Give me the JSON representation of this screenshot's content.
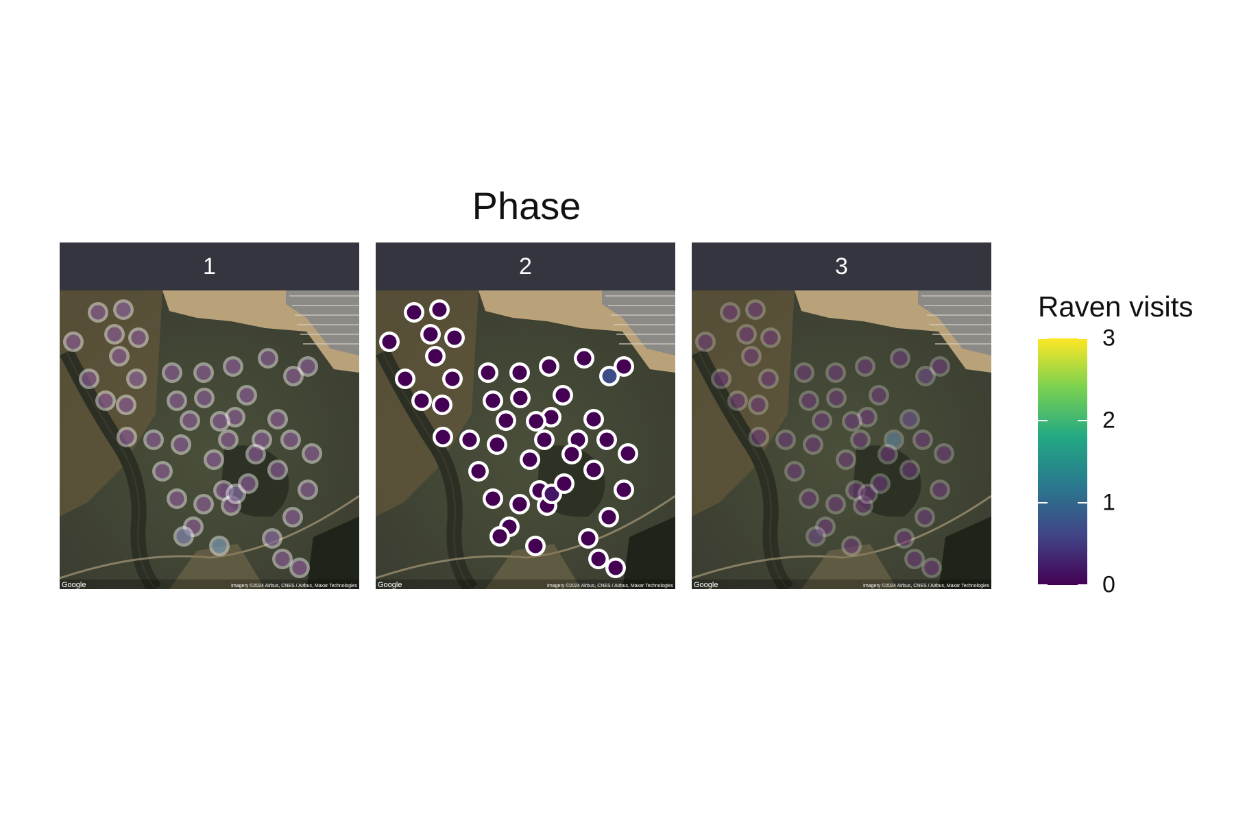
{
  "title": "Phase",
  "legend": {
    "title": "Raven visits",
    "ticks": [
      {
        "value": 3,
        "label": "3"
      },
      {
        "value": 2,
        "label": "2"
      },
      {
        "value": 1,
        "label": "1"
      },
      {
        "value": 0,
        "label": "0"
      }
    ],
    "range": [
      0,
      3
    ],
    "colors": [
      "#440154",
      "#414487",
      "#2a788e",
      "#22a884",
      "#7ad151",
      "#fde725"
    ]
  },
  "map": {
    "attribution_left": "Google",
    "attribution_right": "Imagery ©2024 Airbus, CNES / Airbus, Maxar Technologies"
  },
  "panels": [
    {
      "label": "1",
      "ring_opacity": 0.45,
      "sites": [
        [
          0.0,
          0.0
        ],
        [
          0.1,
          0.0
        ],
        [
          0.0,
          0.0
        ],
        [
          0.0,
          0.0
        ],
        [
          0.0,
          0.0
        ],
        [
          0.0,
          0.0
        ],
        [
          0.0,
          0.0
        ],
        [
          0.1,
          0.0
        ],
        [
          0.0,
          0.0
        ],
        [
          0.0,
          0.0
        ],
        [
          0.0,
          0.0
        ],
        [
          0.0,
          0.0
        ],
        [
          0.0,
          0.0
        ],
        [
          0.0,
          0.0
        ],
        [
          0.0,
          0.0
        ],
        [
          0.0,
          0.0
        ],
        [
          0.0,
          0.0
        ],
        [
          0.0,
          0.0
        ],
        [
          0.0,
          0.0
        ],
        [
          0.0,
          0.0
        ],
        [
          0.0,
          0.0
        ],
        [
          0.0,
          0.0
        ],
        [
          0.0,
          0.0
        ],
        [
          0.0,
          0.0
        ],
        [
          0.0,
          0.0
        ],
        [
          0.0,
          0.0
        ],
        [
          0.0,
          0.0
        ],
        [
          0.0,
          0.0
        ],
        [
          0.0,
          0.0
        ],
        [
          0.0,
          0.0
        ],
        [
          0.0,
          0.0
        ],
        [
          0.0,
          0.0
        ],
        [
          0.0,
          0.0
        ],
        [
          0.0,
          0.0
        ],
        [
          0.0,
          0.0
        ],
        [
          0.0,
          0.0
        ],
        [
          0.0,
          0.0
        ],
        [
          0.0,
          0.0
        ],
        [
          0.0,
          0.0
        ],
        [
          0.3,
          0.0
        ],
        [
          0.0,
          0.0
        ],
        [
          0.0,
          0.0
        ],
        [
          0.6,
          0.0
        ],
        [
          1.0,
          0.0
        ],
        [
          0.2,
          0.0
        ],
        [
          0.0,
          0.0
        ],
        [
          0.0,
          0.0
        ],
        [
          0.0,
          0.0
        ]
      ]
    },
    {
      "label": "2",
      "ring_opacity": 1.0,
      "sites": [
        [
          0.0,
          0.0
        ],
        [
          0.0,
          0.0
        ],
        [
          0.0,
          0.0
        ],
        [
          0.0,
          0.0
        ],
        [
          0.0,
          0.0
        ],
        [
          0.0,
          0.0
        ],
        [
          0.0,
          0.0
        ],
        [
          0.0,
          0.0
        ],
        [
          0.0,
          0.0
        ],
        [
          0.0,
          0.0
        ],
        [
          0.0,
          0.0
        ],
        [
          0.0,
          0.0
        ],
        [
          0.0,
          0.0
        ],
        [
          0.0,
          0.0
        ],
        [
          0.7,
          0.0
        ],
        [
          0.0,
          0.0
        ],
        [
          0.0,
          0.0
        ],
        [
          0.0,
          0.0
        ],
        [
          0.0,
          0.0
        ],
        [
          0.0,
          0.0
        ],
        [
          0.0,
          0.0
        ],
        [
          0.0,
          0.0
        ],
        [
          0.0,
          0.0
        ],
        [
          0.0,
          0.0
        ],
        [
          0.0,
          0.0
        ],
        [
          0.0,
          0.0
        ],
        [
          0.0,
          0.0
        ],
        [
          0.0,
          0.0
        ],
        [
          0.0,
          0.0
        ],
        [
          0.0,
          0.0
        ],
        [
          0.0,
          0.0
        ],
        [
          0.0,
          0.0
        ],
        [
          0.0,
          0.0
        ],
        [
          0.0,
          0.0
        ],
        [
          0.0,
          0.0
        ],
        [
          0.0,
          0.0
        ],
        [
          0.0,
          0.0
        ],
        [
          0.0,
          0.0
        ],
        [
          0.0,
          0.0
        ],
        [
          0.2,
          0.0
        ],
        [
          0.0,
          0.0
        ],
        [
          0.0,
          0.0
        ],
        [
          0.0,
          0.0
        ],
        [
          0.0,
          0.0
        ],
        [
          0.0,
          0.0
        ],
        [
          0.0,
          0.0
        ],
        [
          0.0,
          0.0
        ],
        [
          0.0,
          0.0
        ]
      ]
    },
    {
      "label": "3",
      "ring_opacity": 0.25,
      "sites": [
        [
          0.0,
          0.0
        ],
        [
          0.0,
          0.0
        ],
        [
          0.0,
          0.0
        ],
        [
          0.0,
          0.0
        ],
        [
          0.0,
          0.0
        ],
        [
          0.0,
          0.0
        ],
        [
          0.0,
          0.0
        ],
        [
          0.0,
          0.0
        ],
        [
          0.0,
          0.0
        ],
        [
          0.0,
          0.0
        ],
        [
          0.0,
          0.0
        ],
        [
          0.0,
          0.0
        ],
        [
          0.0,
          0.0
        ],
        [
          0.0,
          0.0
        ],
        [
          0.2,
          0.0
        ],
        [
          0.0,
          0.0
        ],
        [
          0.0,
          0.0
        ],
        [
          0.0,
          0.0
        ],
        [
          0.0,
          0.0
        ],
        [
          0.0,
          0.0
        ],
        [
          0.0,
          0.0
        ],
        [
          0.0,
          0.0
        ],
        [
          0.3,
          0.0
        ],
        [
          1.0,
          0.0
        ],
        [
          0.0,
          0.0
        ],
        [
          0.0,
          0.0
        ],
        [
          0.0,
          0.0
        ],
        [
          0.0,
          0.0
        ],
        [
          0.0,
          0.0
        ],
        [
          0.0,
          0.0
        ],
        [
          0.0,
          0.0
        ],
        [
          0.0,
          0.0
        ],
        [
          0.0,
          0.0
        ],
        [
          0.0,
          0.0
        ],
        [
          0.0,
          0.0
        ],
        [
          0.0,
          0.0
        ],
        [
          0.0,
          0.0
        ],
        [
          0.0,
          0.0
        ],
        [
          0.0,
          0.0
        ],
        [
          0.0,
          0.0
        ],
        [
          0.0,
          0.0
        ],
        [
          0.0,
          0.0
        ],
        [
          0.2,
          0.0
        ],
        [
          0.0,
          0.0
        ],
        [
          0.0,
          0.0
        ],
        [
          0.0,
          0.0
        ],
        [
          0.0,
          0.0
        ],
        [
          0.0,
          0.0
        ]
      ]
    }
  ]
}
